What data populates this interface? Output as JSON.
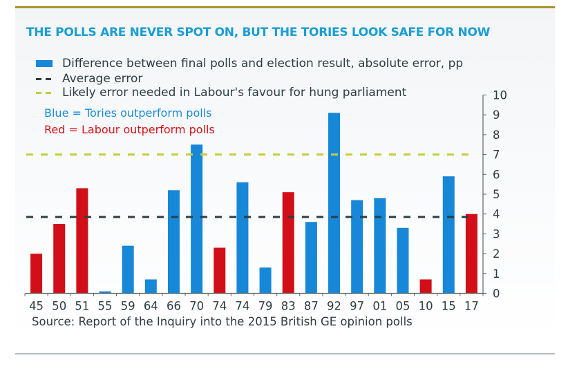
{
  "header": {
    "title": "THE POLLS ARE NEVER SPOT ON, BUT THE TORIES LOOK SAFE FOR NOW"
  },
  "legend": {
    "bars": "Difference between final polls and election result, absolute error, pp",
    "average": "Average error",
    "likely": "Likely error needed in Labour's favour for hung parliament"
  },
  "notes": {
    "blue": "Blue = Tories outperform polls",
    "red": "Red = Labour outperform polls"
  },
  "source": "Source: Report of the Inquiry into the 2015 British GE opinion polls",
  "colors": {
    "tories": "#1787d8",
    "labour": "#d20f18",
    "average_line": "#2e3d40",
    "likely_line": "#c6cc3a",
    "title": "#1a9ed3",
    "top_rule": "#a8922e"
  },
  "chart_data": {
    "type": "bar",
    "title": "THE POLLS ARE NEVER SPOT ON, BUT THE TORIES LOOK SAFE FOR NOW",
    "xlabel": "",
    "ylabel": "Absolute error, pp",
    "ylim": [
      0,
      10
    ],
    "yticks": [
      0,
      1,
      2,
      3,
      4,
      5,
      6,
      7,
      8,
      9,
      10
    ],
    "y_axis_side": "right",
    "grid": false,
    "legend_position": "top-left",
    "categories": [
      "45",
      "50",
      "51",
      "55",
      "59",
      "64",
      "66",
      "70",
      "74",
      "74",
      "79",
      "83",
      "87",
      "92",
      "97",
      "01",
      "05",
      "10",
      "15",
      "17"
    ],
    "values": [
      2.0,
      3.5,
      5.3,
      0.1,
      2.4,
      0.7,
      5.2,
      7.5,
      2.3,
      5.6,
      1.3,
      5.1,
      3.6,
      9.1,
      4.7,
      4.8,
      3.3,
      0.7,
      5.9,
      4.0
    ],
    "outperformer": [
      "Labour",
      "Labour",
      "Labour",
      "Tories",
      "Tories",
      "Tories",
      "Tories",
      "Tories",
      "Labour",
      "Tories",
      "Tories",
      "Labour",
      "Tories",
      "Tories",
      "Tories",
      "Tories",
      "Tories",
      "Labour",
      "Tories",
      "Labour"
    ],
    "reference_lines": [
      {
        "name": "Average error",
        "value": 3.85,
        "style": "dashed",
        "color": "#2e3d40"
      },
      {
        "name": "Likely error needed in Labour's favour for hung parliament",
        "value": 7.0,
        "style": "dashed",
        "color": "#c6cc3a"
      }
    ]
  }
}
